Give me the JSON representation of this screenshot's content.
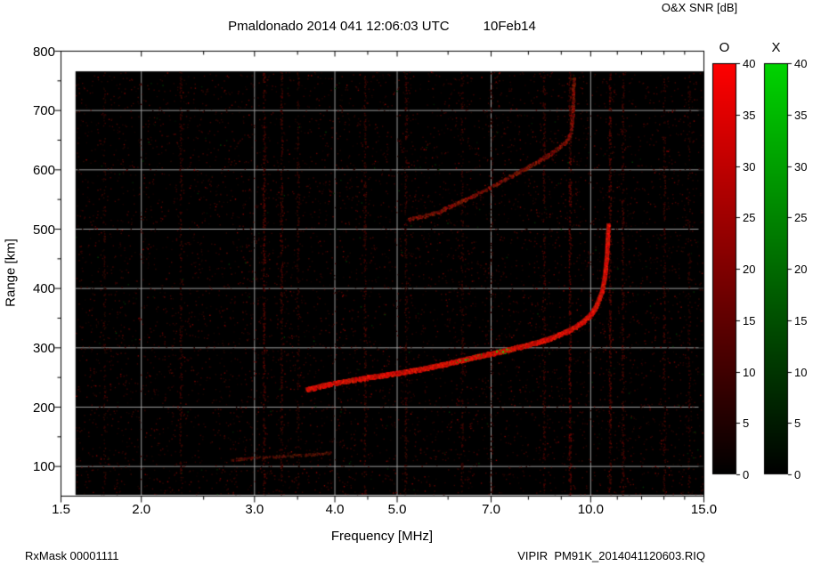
{
  "title": "Pmaldonado 2014 041 12:06:03 UTC",
  "date_label": "10Feb14",
  "footer": {
    "left": "RxMask 00001111",
    "right": "VIPIR  PM91K_2014041120603.RIQ"
  },
  "chart_data": {
    "type": "heatmap",
    "subtype": "ionogram",
    "title": "Pmaldonado 2014 041 12:06:03 UTC   10Feb14",
    "xlabel": "Frequency [MHz]",
    "ylabel": "Range [km]",
    "x_scale": "log",
    "xlim": [
      1.5,
      15.0
    ],
    "ylim": [
      50,
      800
    ],
    "x_ticks": [
      1.5,
      2.0,
      3.0,
      4.0,
      5.0,
      7.0,
      10.0,
      15.0
    ],
    "x_tick_labels": [
      "1.5",
      "2.0",
      "3.0",
      "4.0",
      "5.0",
      "7.0",
      "10.0",
      "15.0"
    ],
    "x_minor_ticks": [
      2.5,
      3.5,
      4.5,
      6.0,
      8.0,
      9.0,
      11.0,
      12.0,
      13.0,
      14.0
    ],
    "y_ticks": [
      100,
      200,
      300,
      400,
      500,
      600,
      700,
      800
    ],
    "y_minor_ticks": [
      150,
      250,
      350,
      450,
      550,
      650,
      750
    ],
    "grid": true,
    "plot_background": "#000000",
    "grid_color": "#9b9b9b",
    "data_extent": {
      "f_min": 1.58,
      "f_max": 15.0,
      "km_min": 52,
      "km_max": 766
    },
    "colorbar": {
      "title": "O&X SNR [dB]",
      "min": 0,
      "max": 40,
      "ticks": [
        0,
        5,
        10,
        15,
        20,
        25,
        30,
        35,
        40
      ],
      "bars": [
        {
          "label": "O",
          "color": "#ff0000"
        },
        {
          "label": "X",
          "color": "#00d400"
        }
      ]
    },
    "traces": [
      {
        "name": "F-region first-hop echo (O-mode, with X-mode green specks 6-7.5 MHz)",
        "points": [
          [
            3.6,
            230
          ],
          [
            3.8,
            236
          ],
          [
            4.0,
            241
          ],
          [
            4.3,
            247
          ],
          [
            4.6,
            252
          ],
          [
            5.0,
            258
          ],
          [
            5.4,
            264
          ],
          [
            5.8,
            271
          ],
          [
            6.2,
            278
          ],
          [
            6.6,
            285
          ],
          [
            7.0,
            291
          ],
          [
            7.4,
            297
          ],
          [
            7.8,
            303
          ],
          [
            8.2,
            309
          ],
          [
            8.6,
            316
          ],
          [
            9.0,
            324
          ],
          [
            9.4,
            334
          ],
          [
            9.7,
            344
          ],
          [
            10.0,
            357
          ],
          [
            10.2,
            372
          ],
          [
            10.4,
            395
          ],
          [
            10.5,
            420
          ],
          [
            10.58,
            455
          ],
          [
            10.62,
            490
          ],
          [
            10.65,
            510
          ]
        ]
      },
      {
        "name": "second-hop echo",
        "points": [
          [
            5.2,
            517
          ],
          [
            5.5,
            523
          ],
          [
            5.8,
            530
          ],
          [
            6.2,
            545
          ],
          [
            6.6,
            558
          ],
          [
            7.0,
            572
          ],
          [
            7.4,
            586
          ],
          [
            7.8,
            600
          ],
          [
            8.2,
            613
          ],
          [
            8.6,
            626
          ],
          [
            9.0,
            641
          ],
          [
            9.2,
            652
          ],
          [
            9.3,
            662
          ],
          [
            9.35,
            685
          ],
          [
            9.38,
            720
          ],
          [
            9.4,
            755
          ]
        ]
      },
      {
        "name": "faint E-region echo",
        "points": [
          [
            2.75,
            112
          ],
          [
            3.0,
            115
          ],
          [
            3.3,
            118
          ],
          [
            3.65,
            121
          ],
          [
            3.95,
            124
          ]
        ]
      }
    ],
    "rfi_lines": [
      {
        "mhz": 1.75,
        "strength": 0.35
      },
      {
        "mhz": 2.3,
        "strength": 0.5
      },
      {
        "mhz": 3.1,
        "strength": 0.75
      },
      {
        "mhz": 3.3,
        "strength": 0.6
      },
      {
        "mhz": 3.5,
        "strength": 0.4
      },
      {
        "mhz": 4.45,
        "strength": 0.55
      },
      {
        "mhz": 5.15,
        "strength": 0.5
      },
      {
        "mhz": 6.3,
        "strength": 0.45
      },
      {
        "mhz": 7.0,
        "strength": 0.35
      },
      {
        "mhz": 8.45,
        "strength": 0.55
      },
      {
        "mhz": 9.27,
        "strength": 0.85
      },
      {
        "mhz": 10.7,
        "strength": 0.8
      },
      {
        "mhz": 11.2,
        "strength": 0.6
      },
      {
        "mhz": 13.0,
        "strength": 0.5
      },
      {
        "mhz": 14.2,
        "strength": 0.35
      }
    ],
    "noise": "sparse dark-red speckle over black background, occasional green specks"
  }
}
